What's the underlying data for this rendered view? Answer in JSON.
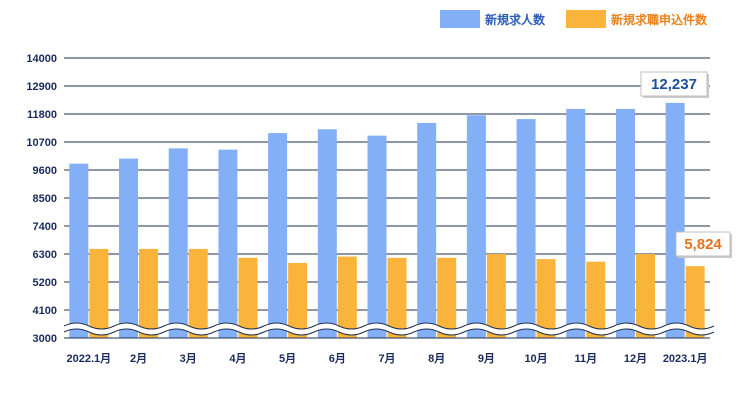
{
  "chart_data": {
    "type": "bar",
    "categories": [
      "2022.1月",
      "2月",
      "3月",
      "4月",
      "5月",
      "6月",
      "7月",
      "8月",
      "9月",
      "10月",
      "11月",
      "12月",
      "2023.1月"
    ],
    "series": [
      {
        "name": "新規求人数",
        "color": "#82aff5",
        "values": [
          9850,
          10050,
          10450,
          10400,
          11050,
          11200,
          10950,
          11450,
          11750,
          11600,
          12000,
          12000,
          12237
        ]
      },
      {
        "name": "新規求職申込件数",
        "color": "#fbb43b",
        "values": [
          6500,
          6500,
          6500,
          6150,
          5950,
          6200,
          6150,
          6150,
          6300,
          6100,
          6000,
          6300,
          5824
        ]
      }
    ],
    "title": "",
    "xlabel": "",
    "ylabel": "",
    "ylim": [
      3000,
      14000
    ],
    "yticks": [
      3000,
      4100,
      5200,
      6300,
      7400,
      8500,
      9600,
      10700,
      11800,
      12900,
      14000
    ],
    "grid": true,
    "axis_break": true,
    "legend_position": "top-right",
    "annotations": [
      {
        "series": 0,
        "category": "2023.1月",
        "text": "12,237",
        "color": "#1a4f9c"
      },
      {
        "series": 1,
        "category": "2023.1月",
        "text": "5,824",
        "color": "#e8711c"
      }
    ]
  }
}
